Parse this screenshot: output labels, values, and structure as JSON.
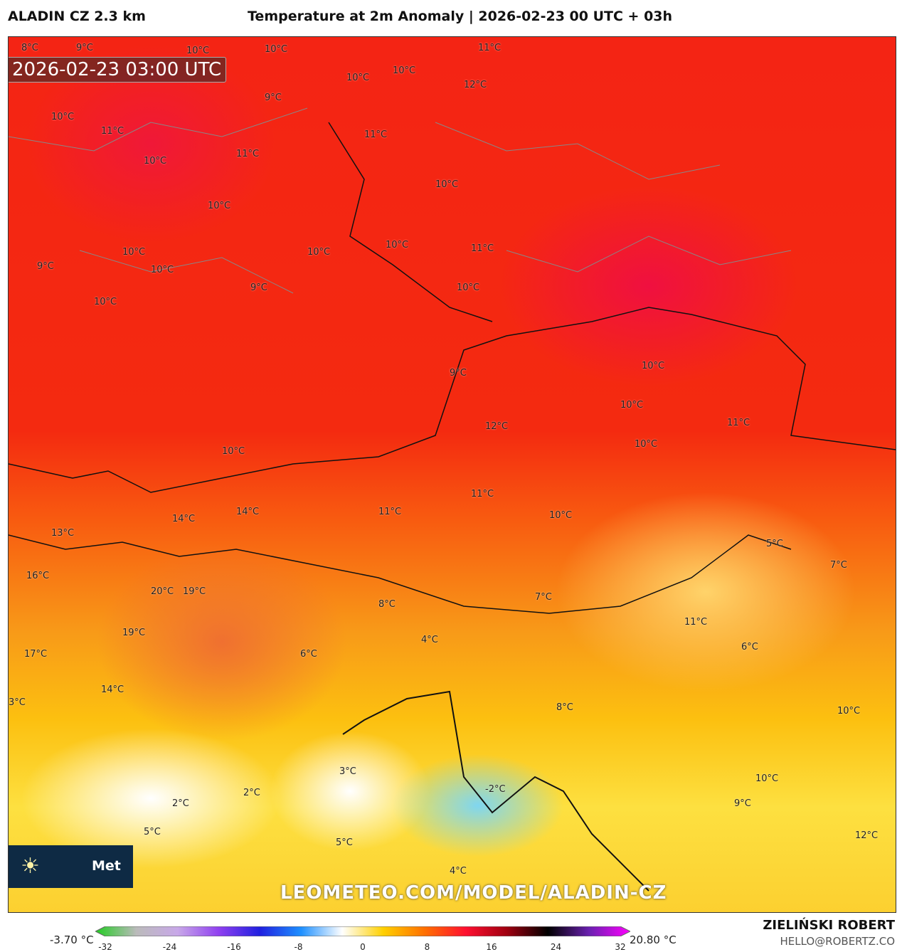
{
  "header": {
    "model": "ALADIN CZ 2.3 km",
    "title": "Temperature at 2m Anomaly | 2026-02-23 00 UTC + 03h"
  },
  "map": {
    "timestamp": "2026-02-23 03:00 UTC",
    "labels": [
      "8°C",
      "9°C",
      "10°C",
      "10°C",
      "11°C",
      "10°C",
      "9°C",
      "10°C",
      "10°C",
      "11°C",
      "12°C",
      "11°C",
      "10°C",
      "11°C",
      "10°C",
      "10°C",
      "10°C",
      "9°C",
      "10°C",
      "10°C",
      "10°C",
      "9°C",
      "10°C",
      "10°C",
      "11°C",
      "10°C",
      "9°C",
      "10°C",
      "11°C",
      "10°C",
      "10°C",
      "11°C",
      "12°C",
      "10°C",
      "11°C",
      "14°C",
      "14°C",
      "13°C",
      "20°C",
      "19°C",
      "16°C",
      "17°C",
      "19°C",
      "14°C",
      "8°C",
      "6°C",
      "4°C",
      "3°C",
      "2°C",
      "2°C",
      "-2°C",
      "3°C",
      "5°C",
      "4°C",
      "5°C",
      "7°C",
      "8°C",
      "9°C",
      "10°C",
      "11°C",
      "12°C",
      "7°C",
      "5°C",
      "6°C",
      "10°C"
    ],
    "watermark": "LEOMETEO.COM/MODEL/ALADIN-CZ",
    "logo_text": "Met"
  },
  "colorbar": {
    "min_label": "-3.70 °C",
    "max_label": "20.80 °C",
    "ticks": [
      "-32",
      "-24",
      "-16",
      "-8",
      "0",
      "8",
      "16",
      "24",
      "32"
    ],
    "range": [
      -32,
      32
    ],
    "colors": [
      "#22cc22",
      "#bbbbbb",
      "#c8a8e8",
      "#9040f0",
      "#2020e0",
      "#1e90ff",
      "#ffffff",
      "#ffd000",
      "#ff7000",
      "#ff1030",
      "#a00010",
      "#000000",
      "#6a20b0",
      "#ff00ff"
    ]
  },
  "footer": {
    "author": "ZIELIŃSKI ROBERT",
    "email": "HELLO@ROBERTZ.CO"
  }
}
